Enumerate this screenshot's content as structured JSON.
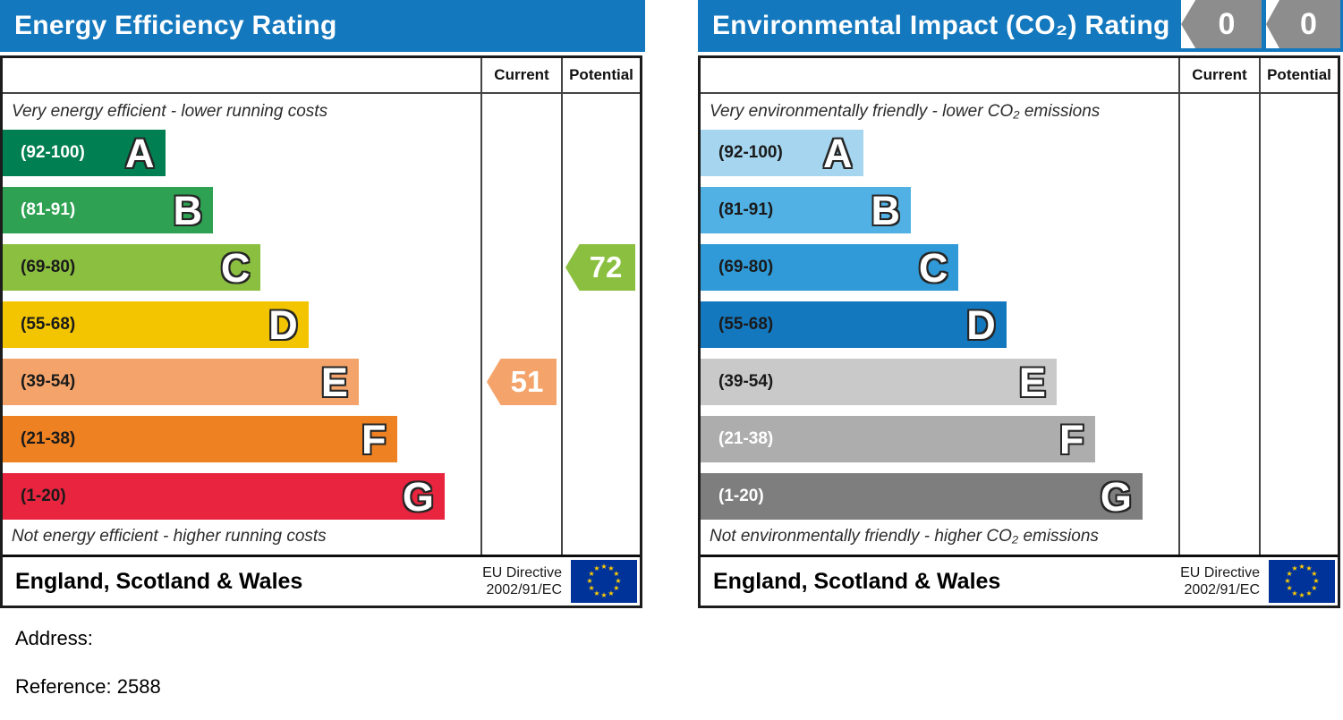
{
  "colors": {
    "header_blue": "#1478be",
    "badge_gray": "#8d8d8d",
    "eu_flag_blue": "#003399",
    "eu_star_yellow": "#ffcc00"
  },
  "chart_data": [
    {
      "type": "bar",
      "title": "Energy Efficiency Rating",
      "columns": [
        "Current",
        "Potential"
      ],
      "top_caption": "Very energy efficient - lower running costs",
      "bottom_caption": "Not energy efficient - higher running costs",
      "categories": [
        "A",
        "B",
        "C",
        "D",
        "E",
        "F",
        "G"
      ],
      "ranges": [
        "(92-100)",
        "(81-91)",
        "(69-80)",
        "(55-68)",
        "(39-54)",
        "(21-38)",
        "(1-20)"
      ],
      "bar_length_pct": [
        34,
        44,
        54,
        64,
        74.5,
        82.5,
        92.5
      ],
      "colors": [
        "#007f52",
        "#2ea152",
        "#8bbf40",
        "#f2c500",
        "#f4a46b",
        "#ee8122",
        "#e9243e"
      ],
      "range_label_colors": [
        "#ffffff",
        "#ffffff",
        "#1a1a1a",
        "#1a1a1a",
        "#1a1a1a",
        "#1a1a1a",
        "#1a1a1a"
      ],
      "current": {
        "value": "51",
        "band": "E"
      },
      "potential": {
        "value": "72",
        "band": "C"
      },
      "footer_region": "England, Scotland & Wales",
      "footer_directive_line1": "EU Directive",
      "footer_directive_line2": "2002/91/EC"
    },
    {
      "type": "bar",
      "title": "Environmental Impact (CO₂) Rating",
      "columns": [
        "Current",
        "Potential"
      ],
      "top_caption": "Very environmentally friendly - lower CO₂ emissions",
      "bottom_caption": "Not environmentally friendly - higher CO₂ emissions",
      "categories": [
        "A",
        "B",
        "C",
        "D",
        "E",
        "F",
        "G"
      ],
      "ranges": [
        "(92-100)",
        "(81-91)",
        "(69-80)",
        "(55-68)",
        "(39-54)",
        "(21-38)",
        "(1-20)"
      ],
      "bar_length_pct": [
        34,
        44,
        54,
        64,
        74.5,
        82.5,
        92.5
      ],
      "colors": [
        "#a5d5ef",
        "#52b1e4",
        "#2f9ad7",
        "#1478be",
        "#c9c9c9",
        "#adadad",
        "#7e7e7e"
      ],
      "range_label_colors": [
        "#1a1a1a",
        "#1a1a1a",
        "#1a1a1a",
        "#1a1a1a",
        "#1a1a1a",
        "#ffffff",
        "#ffffff"
      ],
      "current": {
        "value": "0",
        "band": null
      },
      "potential": {
        "value": "0",
        "band": null
      },
      "header_badges": [
        "0",
        "0"
      ],
      "footer_region": "England, Scotland & Wales",
      "footer_directive_line1": "EU Directive",
      "footer_directive_line2": "2002/91/EC"
    }
  ],
  "details": {
    "address_label": "Address:",
    "reference_label": "Reference:",
    "reference_value": "2588"
  }
}
